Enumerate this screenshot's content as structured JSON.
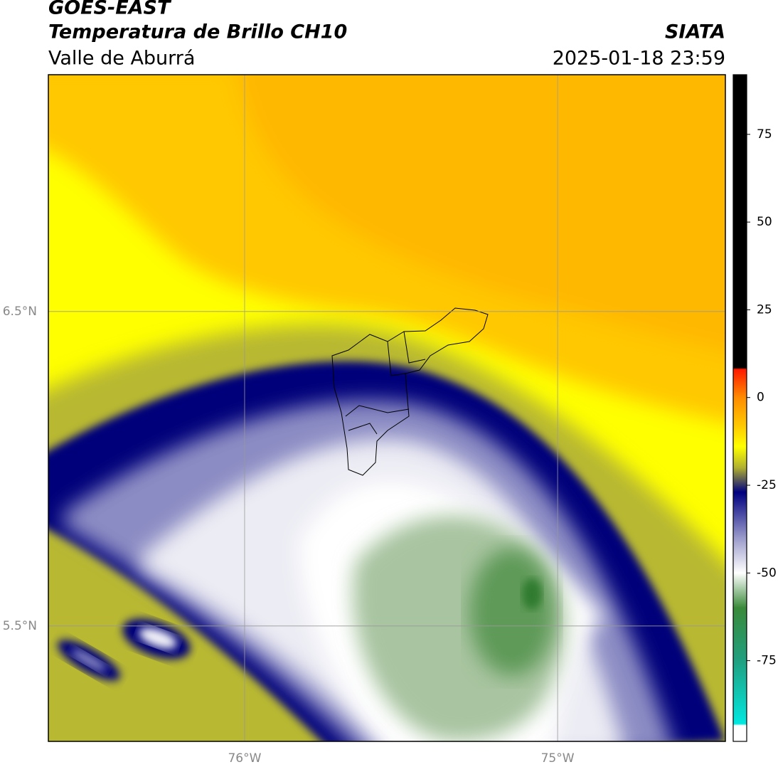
{
  "chart_data": {
    "type": "map",
    "title": "GOES-EAST",
    "subtitle": "Temperatura de Brillo CH10",
    "region": "Valle de Aburrá",
    "source": "SIATA",
    "datetime": "2025-01-18 23:59",
    "xlim": [
      -76.627,
      -74.464
    ],
    "ylim": [
      5.133,
      7.253
    ],
    "xticks": [
      {
        "value": -76,
        "label": "76°W"
      },
      {
        "value": -75,
        "label": "75°W"
      }
    ],
    "yticks": [
      {
        "value": 6.5,
        "label": "6.5°N"
      },
      {
        "value": 5.5,
        "label": "5.5°N"
      }
    ],
    "clim": [
      -98,
      92
    ],
    "cticks": [
      75,
      50,
      25,
      0,
      -25,
      -50,
      -75
    ],
    "colormap": [
      {
        "value": 92,
        "color": "#000000"
      },
      {
        "value": 8.5,
        "color": "#000000"
      },
      {
        "value": 8,
        "color": "#ff1a00"
      },
      {
        "value": 0,
        "color": "#ff8c00"
      },
      {
        "value": -8,
        "color": "#ffc800"
      },
      {
        "value": -14,
        "color": "#ffff00"
      },
      {
        "value": -20,
        "color": "#b0b030"
      },
      {
        "value": -27,
        "color": "#000080"
      },
      {
        "value": -40,
        "color": "#9a9acb"
      },
      {
        "value": -50,
        "color": "#ffffff"
      },
      {
        "value": -60,
        "color": "#3a8a3a"
      },
      {
        "value": -75,
        "color": "#20a080"
      },
      {
        "value": -93,
        "color": "#00e8e0"
      },
      {
        "value": -93.5,
        "color": "#ffffff"
      },
      {
        "value": -98,
        "color": "#ffffff"
      }
    ],
    "grid": true
  }
}
